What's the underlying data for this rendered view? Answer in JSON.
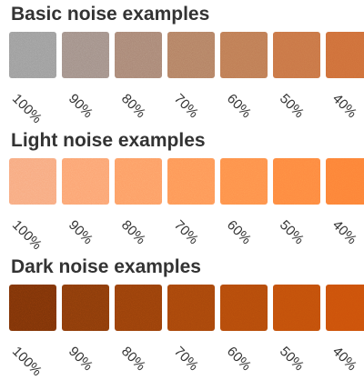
{
  "sections": [
    {
      "title": "Basic noise examples",
      "labels": [
        "100%",
        "90%",
        "80%",
        "70%",
        "60%",
        "50%",
        "40%"
      ],
      "colors": [
        "#9a9a9a",
        "#a08e86",
        "#a88574",
        "#b38063",
        "#be7b54",
        "#c97546",
        "#cf6f3a"
      ]
    },
    {
      "title": "Light noise examples",
      "labels": [
        "100%",
        "90%",
        "80%",
        "70%",
        "60%",
        "50%",
        "40%"
      ],
      "colors": [
        "#f8a77c",
        "#fca270",
        "#fd9c63",
        "#fe9656",
        "#fe904a",
        "#fe8940",
        "#fd8338"
      ]
    },
    {
      "title": "Dark noise examples",
      "labels": [
        "100%",
        "90%",
        "80%",
        "70%",
        "60%",
        "50%",
        "40%"
      ],
      "colors": [
        "#7a3208",
        "#883a0a",
        "#973f0a",
        "#a6450b",
        "#b44a0b",
        "#c24f0b",
        "#cc510b"
      ]
    }
  ]
}
